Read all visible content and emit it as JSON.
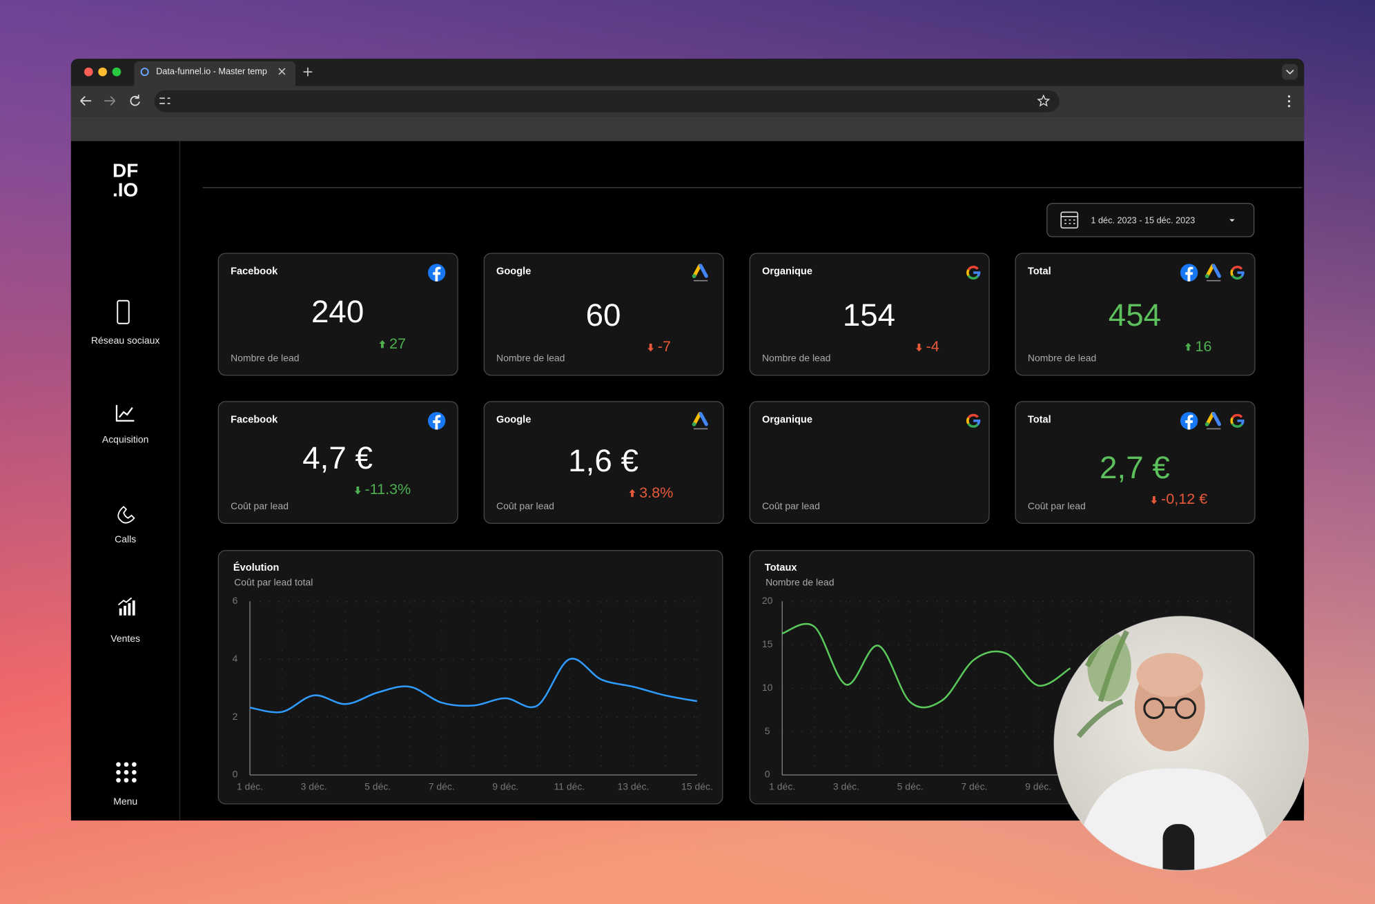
{
  "browser": {
    "tab_title": "Data-funnel.io - Master temp"
  },
  "sidebar": {
    "logo": [
      "DF",
      ".IO"
    ],
    "items": [
      "Réseau sociaux",
      "Acquisition",
      "Calls",
      "Ventes",
      "Menu"
    ]
  },
  "date_range": "1 déc. 2023 - 15 déc. 2023",
  "cards": [
    {
      "title": "Facebook",
      "value": "240",
      "subtitle": "Nombre de lead",
      "delta": "27",
      "delta_color": "#4caf50",
      "value_color": "#ffffff"
    },
    {
      "title": "Google",
      "value": "60",
      "subtitle": "Nombre de lead",
      "delta": "-7",
      "delta_color": "#e8583a",
      "value_color": "#ffffff"
    },
    {
      "title": "Organique",
      "value": "154",
      "subtitle": "Nombre de lead",
      "delta": "-4",
      "delta_color": "#e8583a",
      "value_color": "#ffffff"
    },
    {
      "title": "Total",
      "value": "454",
      "subtitle": "Nombre de lead",
      "delta": "16",
      "delta_color": "#4caf50",
      "value_color": "#5cc05c"
    },
    {
      "title": "Facebook",
      "value": "4,7 €",
      "subtitle": "Coût par lead",
      "delta": "-11.3%",
      "delta_color": "#4caf50",
      "value_color": "#ffffff"
    },
    {
      "title": "Google",
      "value": "1,6 €",
      "subtitle": "Coût par lead",
      "delta": "3.8%",
      "delta_color": "#e8583a",
      "value_color": "#ffffff"
    },
    {
      "title": "Organique",
      "subtitle": "Coût par lead"
    },
    {
      "title": "Total",
      "value": "2,7 €",
      "subtitle": "Coût par lead",
      "delta": "-0,12 €",
      "delta_color": "#e8583a",
      "value_color": "#5cc05c"
    }
  ],
  "chart_data": [
    {
      "type": "line",
      "title": "Évolution",
      "subtitle": "Coût par lead total",
      "categories": [
        "1 déc.",
        null,
        "3 déc.",
        null,
        "5 déc.",
        null,
        "7 déc.",
        null,
        "9 déc.",
        null,
        "11 déc.",
        null,
        "13 déc.",
        null,
        "15 déc."
      ],
      "values": [
        2.33,
        2.18,
        2.75,
        2.45,
        2.85,
        3.05,
        2.5,
        2.4,
        2.65,
        2.4,
        4.0,
        3.3,
        3.05,
        2.75,
        2.55
      ],
      "color": "#2f9bff",
      "ylim": [
        0,
        6
      ],
      "yticks": [
        0,
        2,
        4,
        6
      ],
      "grid": true
    },
    {
      "type": "line",
      "title": "Totaux",
      "subtitle": "Nombre de lead",
      "categories": [
        "1 déc.",
        null,
        "3 déc.",
        null,
        "5 déc.",
        null,
        "7 déc.",
        null,
        "9 déc.",
        null,
        null,
        null,
        null,
        null,
        null
      ],
      "values": [
        16.3,
        17.1,
        10.4,
        14.9,
        8.4,
        8.6,
        13.3,
        14.0,
        10.3,
        12.3,
        null,
        null,
        null,
        null,
        null
      ],
      "color": "#5ac85a",
      "ylim": [
        0,
        20
      ],
      "yticks": [
        0,
        5,
        10,
        15,
        20
      ],
      "grid": true
    }
  ]
}
